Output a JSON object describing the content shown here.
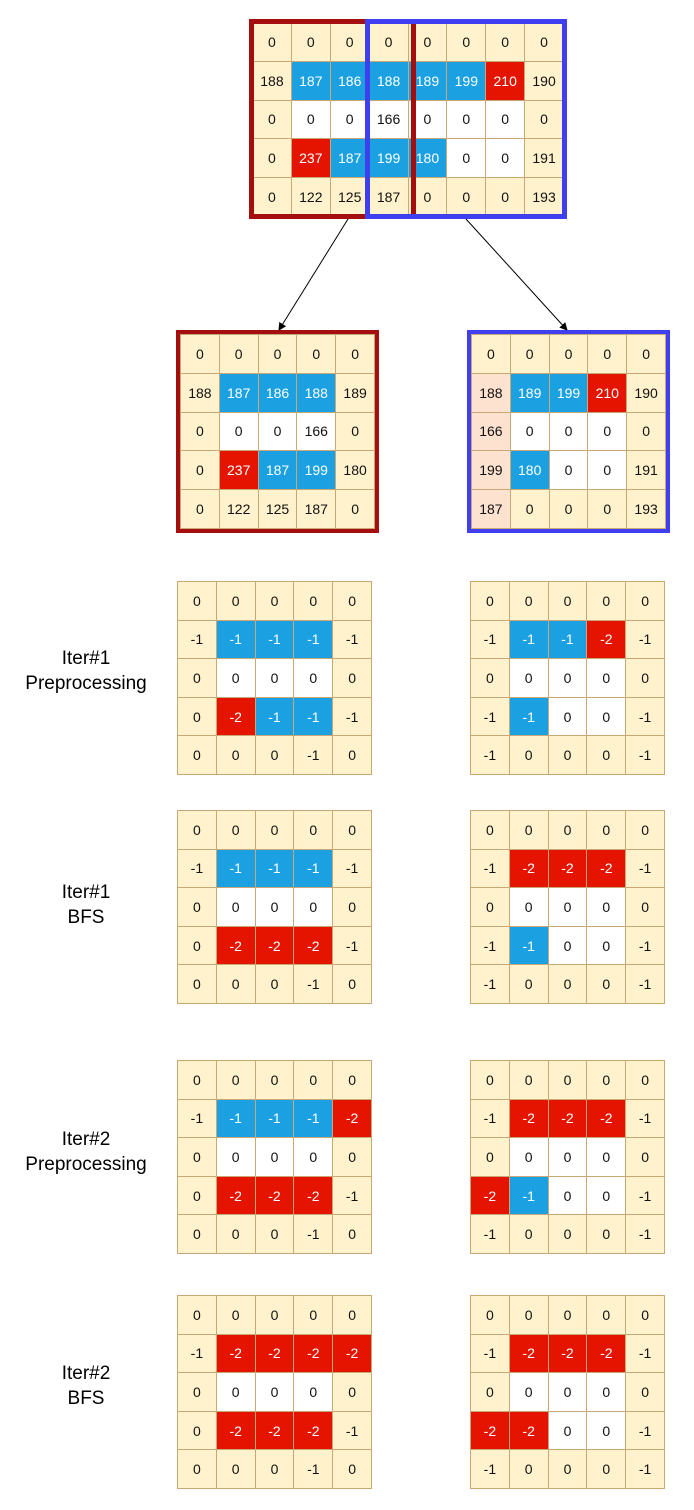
{
  "legend_colors": {
    "yellow": "#fff2cc",
    "blue": "#1ba1e2",
    "red": "#e51400",
    "white": "#ffffff",
    "peach": "#fde2cf",
    "border": "#c9a876",
    "left_window": "#a50e0e",
    "right_window": "#3f3ff0"
  },
  "source": {
    "values": [
      [
        "0",
        "0",
        "0",
        "0",
        "0",
        "0",
        "0",
        "0"
      ],
      [
        "188",
        "187",
        "186",
        "188",
        "189",
        "199",
        "210",
        "190"
      ],
      [
        "0",
        "0",
        "0",
        "166",
        "0",
        "0",
        "0",
        "0"
      ],
      [
        "0",
        "237",
        "187",
        "199",
        "180",
        "0",
        "0",
        "191"
      ],
      [
        "0",
        "122",
        "125",
        "187",
        "0",
        "0",
        "0",
        "193"
      ]
    ],
    "colors": [
      [
        "y",
        "y",
        "y",
        "y",
        "y",
        "y",
        "y",
        "y"
      ],
      [
        "y",
        "b",
        "b",
        "b",
        "b",
        "b",
        "r",
        "y"
      ],
      [
        "y",
        "w",
        "w",
        "w",
        "w",
        "w",
        "w",
        "y"
      ],
      [
        "y",
        "r",
        "b",
        "b",
        "b",
        "w",
        "w",
        "y"
      ],
      [
        "y",
        "y",
        "y",
        "y",
        "y",
        "y",
        "y",
        "y"
      ]
    ]
  },
  "stages": [
    {
      "label_line1": "",
      "label_line2": "",
      "left": {
        "values": [
          [
            "0",
            "0",
            "0",
            "0",
            "0"
          ],
          [
            "188",
            "187",
            "186",
            "188",
            "189"
          ],
          [
            "0",
            "0",
            "0",
            "166",
            "0"
          ],
          [
            "0",
            "237",
            "187",
            "199",
            "180"
          ],
          [
            "0",
            "122",
            "125",
            "187",
            "0"
          ]
        ],
        "colors": [
          [
            "y",
            "y",
            "y",
            "y",
            "y"
          ],
          [
            "y",
            "b",
            "b",
            "b",
            "y"
          ],
          [
            "y",
            "w",
            "w",
            "w",
            "y"
          ],
          [
            "y",
            "r",
            "b",
            "b",
            "y"
          ],
          [
            "y",
            "y",
            "y",
            "y",
            "y"
          ]
        ]
      },
      "right": {
        "values": [
          [
            "0",
            "0",
            "0",
            "0",
            "0"
          ],
          [
            "188",
            "189",
            "199",
            "210",
            "190"
          ],
          [
            "166",
            "0",
            "0",
            "0",
            "0"
          ],
          [
            "199",
            "180",
            "0",
            "0",
            "191"
          ],
          [
            "187",
            "0",
            "0",
            "0",
            "193"
          ]
        ],
        "colors": [
          [
            "y",
            "y",
            "y",
            "y",
            "y"
          ],
          [
            "p",
            "b",
            "b",
            "r",
            "y"
          ],
          [
            "p",
            "w",
            "w",
            "w",
            "y"
          ],
          [
            "p",
            "b",
            "w",
            "w",
            "y"
          ],
          [
            "p",
            "y",
            "y",
            "y",
            "y"
          ]
        ]
      }
    },
    {
      "label_line1": "Iter#1",
      "label_line2": "Preprocessing",
      "left": {
        "values": [
          [
            "0",
            "0",
            "0",
            "0",
            "0"
          ],
          [
            "-1",
            "-1",
            "-1",
            "-1",
            "-1"
          ],
          [
            "0",
            "0",
            "0",
            "0",
            "0"
          ],
          [
            "0",
            "-2",
            "-1",
            "-1",
            "-1"
          ],
          [
            "0",
            "0",
            "0",
            "-1",
            "0"
          ]
        ],
        "colors": [
          [
            "y",
            "y",
            "y",
            "y",
            "y"
          ],
          [
            "y",
            "b",
            "b",
            "b",
            "y"
          ],
          [
            "y",
            "w",
            "w",
            "w",
            "y"
          ],
          [
            "y",
            "r",
            "b",
            "b",
            "y"
          ],
          [
            "y",
            "y",
            "y",
            "y",
            "y"
          ]
        ]
      },
      "right": {
        "values": [
          [
            "0",
            "0",
            "0",
            "0",
            "0"
          ],
          [
            "-1",
            "-1",
            "-1",
            "-2",
            "-1"
          ],
          [
            "0",
            "0",
            "0",
            "0",
            "0"
          ],
          [
            "-1",
            "-1",
            "0",
            "0",
            "-1"
          ],
          [
            "-1",
            "0",
            "0",
            "0",
            "-1"
          ]
        ],
        "colors": [
          [
            "y",
            "y",
            "y",
            "y",
            "y"
          ],
          [
            "y",
            "b",
            "b",
            "r",
            "y"
          ],
          [
            "y",
            "w",
            "w",
            "w",
            "y"
          ],
          [
            "y",
            "b",
            "w",
            "w",
            "y"
          ],
          [
            "y",
            "y",
            "y",
            "y",
            "y"
          ]
        ]
      }
    },
    {
      "label_line1": "Iter#1",
      "label_line2": "BFS",
      "left": {
        "values": [
          [
            "0",
            "0",
            "0",
            "0",
            "0"
          ],
          [
            "-1",
            "-1",
            "-1",
            "-1",
            "-1"
          ],
          [
            "0",
            "0",
            "0",
            "0",
            "0"
          ],
          [
            "0",
            "-2",
            "-2",
            "-2",
            "-1"
          ],
          [
            "0",
            "0",
            "0",
            "-1",
            "0"
          ]
        ],
        "colors": [
          [
            "y",
            "y",
            "y",
            "y",
            "y"
          ],
          [
            "y",
            "b",
            "b",
            "b",
            "y"
          ],
          [
            "y",
            "w",
            "w",
            "w",
            "y"
          ],
          [
            "y",
            "r",
            "r",
            "r",
            "y"
          ],
          [
            "y",
            "y",
            "y",
            "y",
            "y"
          ]
        ]
      },
      "right": {
        "values": [
          [
            "0",
            "0",
            "0",
            "0",
            "0"
          ],
          [
            "-1",
            "-2",
            "-2",
            "-2",
            "-1"
          ],
          [
            "0",
            "0",
            "0",
            "0",
            "0"
          ],
          [
            "-1",
            "-1",
            "0",
            "0",
            "-1"
          ],
          [
            "-1",
            "0",
            "0",
            "0",
            "-1"
          ]
        ],
        "colors": [
          [
            "y",
            "y",
            "y",
            "y",
            "y"
          ],
          [
            "y",
            "r",
            "r",
            "r",
            "y"
          ],
          [
            "y",
            "w",
            "w",
            "w",
            "y"
          ],
          [
            "y",
            "b",
            "w",
            "w",
            "y"
          ],
          [
            "y",
            "y",
            "y",
            "y",
            "y"
          ]
        ]
      }
    },
    {
      "label_line1": "Iter#2",
      "label_line2": "Preprocessing",
      "left": {
        "values": [
          [
            "0",
            "0",
            "0",
            "0",
            "0"
          ],
          [
            "-1",
            "-1",
            "-1",
            "-1",
            "-2"
          ],
          [
            "0",
            "0",
            "0",
            "0",
            "0"
          ],
          [
            "0",
            "-2",
            "-2",
            "-2",
            "-1"
          ],
          [
            "0",
            "0",
            "0",
            "-1",
            "0"
          ]
        ],
        "colors": [
          [
            "y",
            "y",
            "y",
            "y",
            "y"
          ],
          [
            "y",
            "b",
            "b",
            "b",
            "r"
          ],
          [
            "y",
            "w",
            "w",
            "w",
            "y"
          ],
          [
            "y",
            "r",
            "r",
            "r",
            "y"
          ],
          [
            "y",
            "y",
            "y",
            "y",
            "y"
          ]
        ]
      },
      "right": {
        "values": [
          [
            "0",
            "0",
            "0",
            "0",
            "0"
          ],
          [
            "-1",
            "-2",
            "-2",
            "-2",
            "-1"
          ],
          [
            "0",
            "0",
            "0",
            "0",
            "0"
          ],
          [
            "-2",
            "-1",
            "0",
            "0",
            "-1"
          ],
          [
            "-1",
            "0",
            "0",
            "0",
            "-1"
          ]
        ],
        "colors": [
          [
            "y",
            "y",
            "y",
            "y",
            "y"
          ],
          [
            "y",
            "r",
            "r",
            "r",
            "y"
          ],
          [
            "y",
            "w",
            "w",
            "w",
            "y"
          ],
          [
            "r",
            "b",
            "w",
            "w",
            "y"
          ],
          [
            "y",
            "y",
            "y",
            "y",
            "y"
          ]
        ]
      }
    },
    {
      "label_line1": "Iter#2",
      "label_line2": "BFS",
      "left": {
        "values": [
          [
            "0",
            "0",
            "0",
            "0",
            "0"
          ],
          [
            "-1",
            "-2",
            "-2",
            "-2",
            "-2"
          ],
          [
            "0",
            "0",
            "0",
            "0",
            "0"
          ],
          [
            "0",
            "-2",
            "-2",
            "-2",
            "-1"
          ],
          [
            "0",
            "0",
            "0",
            "-1",
            "0"
          ]
        ],
        "colors": [
          [
            "y",
            "y",
            "y",
            "y",
            "y"
          ],
          [
            "y",
            "r",
            "r",
            "r",
            "r"
          ],
          [
            "y",
            "w",
            "w",
            "w",
            "y"
          ],
          [
            "y",
            "r",
            "r",
            "r",
            "y"
          ],
          [
            "y",
            "y",
            "y",
            "y",
            "y"
          ]
        ]
      },
      "right": {
        "values": [
          [
            "0",
            "0",
            "0",
            "0",
            "0"
          ],
          [
            "-1",
            "-2",
            "-2",
            "-2",
            "-1"
          ],
          [
            "0",
            "0",
            "0",
            "0",
            "0"
          ],
          [
            "-2",
            "-2",
            "0",
            "0",
            "-1"
          ],
          [
            "-1",
            "0",
            "0",
            "0",
            "-1"
          ]
        ],
        "colors": [
          [
            "y",
            "y",
            "y",
            "y",
            "y"
          ],
          [
            "y",
            "r",
            "r",
            "r",
            "y"
          ],
          [
            "y",
            "w",
            "w",
            "w",
            "y"
          ],
          [
            "r",
            "r",
            "w",
            "w",
            "y"
          ],
          [
            "y",
            "y",
            "y",
            "y",
            "y"
          ]
        ]
      }
    }
  ]
}
